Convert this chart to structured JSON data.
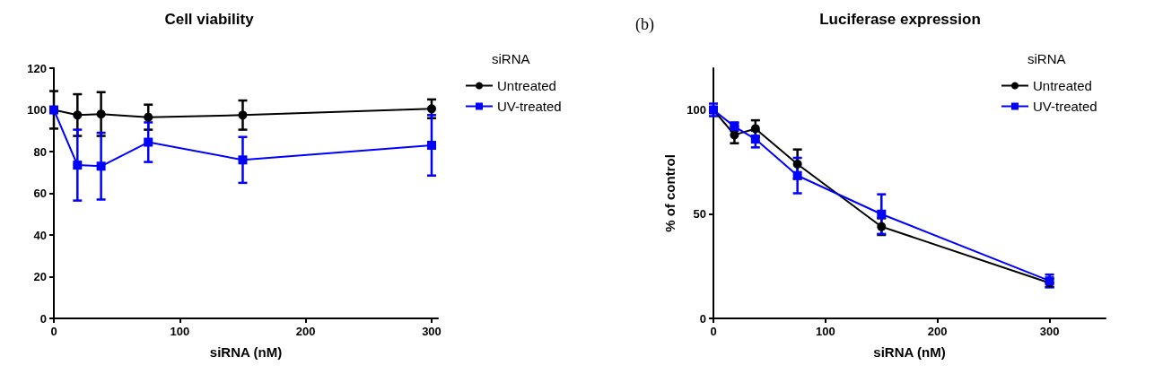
{
  "chart_data": [
    {
      "type": "line",
      "title": "Cell viability",
      "xlabel": "siRNA (nM)",
      "legend_title": "siRNA",
      "legend": "right",
      "grid": false,
      "line_style": "solid",
      "x": [
        0,
        18.75,
        37.5,
        75,
        150,
        300
      ],
      "xlim": [
        0,
        305
      ],
      "xticks": [
        0,
        100,
        200,
        300
      ],
      "ylim": [
        0,
        120
      ],
      "yticks": [
        0,
        20,
        40,
        60,
        80,
        100,
        120
      ],
      "series": [
        {
          "name": "Untreated",
          "color": "#000000",
          "marker": "circle",
          "values": [
            100,
            97.5,
            98,
            96.5,
            97.5,
            100.5
          ],
          "errors": [
            9,
            10,
            10.5,
            6,
            7,
            4.5
          ]
        },
        {
          "name": "UV-treated",
          "color": "#0000ff",
          "marker": "square",
          "values": [
            100,
            73.5,
            73,
            84.5,
            76,
            83
          ],
          "errors": [
            null,
            17,
            16,
            9.5,
            11,
            14.5
          ]
        }
      ]
    },
    {
      "type": "line",
      "title": "Luciferase expression",
      "xlabel": "siRNA (nM)",
      "ylabel": "% of control",
      "legend_title": "siRNA",
      "legend": "right",
      "grid": false,
      "line_style": "solid",
      "annotations": [
        "(b)"
      ],
      "x": [
        0,
        18.75,
        37.5,
        75,
        150,
        300
      ],
      "xlim": [
        0,
        350
      ],
      "xticks": [
        0,
        100,
        200,
        300
      ],
      "ylim": [
        0,
        120
      ],
      "yticks": [
        0,
        50,
        100
      ],
      "series": [
        {
          "name": "Untreated",
          "color": "#000000",
          "marker": "circle",
          "values": [
            100,
            88,
            91,
            74,
            44,
            17
          ],
          "errors": [
            null,
            4,
            4,
            7,
            4,
            2
          ]
        },
        {
          "name": "UV-treated",
          "color": "#0000ff",
          "marker": "square",
          "values": [
            100,
            92,
            86,
            68.5,
            50,
            18
          ],
          "errors": [
            3,
            2,
            4,
            8.5,
            9.5,
            3
          ]
        }
      ]
    }
  ]
}
